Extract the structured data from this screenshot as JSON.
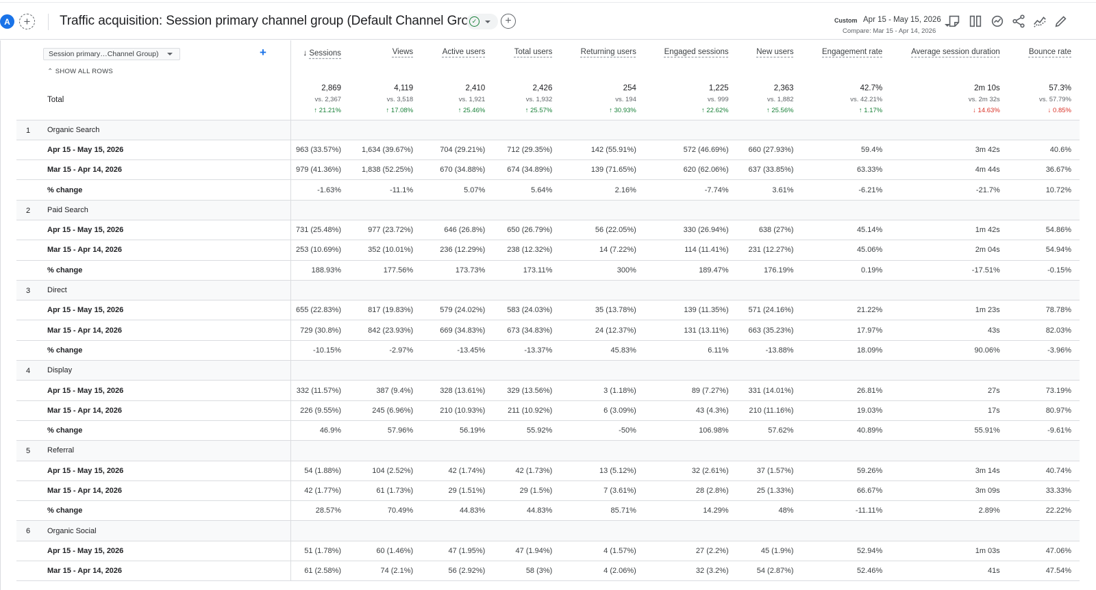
{
  "header": {
    "avatar_letter": "A",
    "title": "Traffic acquisition: Session primary channel group (Default Channel Group)",
    "date": {
      "label": "Custom",
      "range": "Apr 15 - May 15, 2026",
      "compare": "Compare: Mar 15 - Apr 14, 2026"
    },
    "icons": [
      "add-comparison-icon",
      "check-circle-icon",
      "add-icon",
      "notes-icon",
      "compare-columns-icon",
      "insights-icon",
      "share-icon",
      "trend-icon",
      "edit-icon"
    ]
  },
  "table": {
    "dimension_select": "Session primary…Channel Group)",
    "show_all_rows": "SHOW ALL ROWS",
    "total_label": "Total",
    "sorted_column": "Sessions",
    "columns": [
      {
        "name": "Sessions",
        "total": "2,869",
        "vs": "vs. 2,367",
        "change": "↑ 21.21%",
        "dir": "up"
      },
      {
        "name": "Views",
        "total": "4,119",
        "vs": "vs. 3,518",
        "change": "↑ 17.08%",
        "dir": "up"
      },
      {
        "name": "Active users",
        "total": "2,410",
        "vs": "vs. 1,921",
        "change": "↑ 25.46%",
        "dir": "up"
      },
      {
        "name": "Total users",
        "total": "2,426",
        "vs": "vs. 1,932",
        "change": "↑ 25.57%",
        "dir": "up"
      },
      {
        "name": "Returning users",
        "total": "254",
        "vs": "vs. 194",
        "change": "↑ 30.93%",
        "dir": "up"
      },
      {
        "name": "Engaged sessions",
        "total": "1,225",
        "vs": "vs. 999",
        "change": "↑ 22.62%",
        "dir": "up"
      },
      {
        "name": "New users",
        "total": "2,363",
        "vs": "vs. 1,882",
        "change": "↑ 25.56%",
        "dir": "up"
      },
      {
        "name": "Engagement rate",
        "total": "42.7%",
        "vs": "vs. 42.21%",
        "change": "↑ 1.17%",
        "dir": "up"
      },
      {
        "name": "Average session duration",
        "total": "2m 10s",
        "vs": "vs. 2m 32s",
        "change": "↓ 14.63%",
        "dir": "down"
      },
      {
        "name": "Bounce rate",
        "total": "57.3%",
        "vs": "vs. 57.79%",
        "change": "↓ 0.85%",
        "dir": "down"
      }
    ],
    "groups": [
      {
        "rank": "1",
        "name": "Organic Search",
        "rows": [
          {
            "label": "Apr 15 - May 15, 2026",
            "values": [
              "963 (33.57%)",
              "1,634 (39.67%)",
              "704 (29.21%)",
              "712 (29.35%)",
              "142 (55.91%)",
              "572 (46.69%)",
              "660 (27.93%)",
              "59.4%",
              "3m 42s",
              "40.6%"
            ]
          },
          {
            "label": "Mar 15 - Apr 14, 2026",
            "values": [
              "979 (41.36%)",
              "1,838 (52.25%)",
              "670 (34.88%)",
              "674 (34.89%)",
              "139 (71.65%)",
              "620 (62.06%)",
              "637 (33.85%)",
              "63.33%",
              "4m 44s",
              "36.67%"
            ]
          },
          {
            "label": "% change",
            "values": [
              "-1.63%",
              "-11.1%",
              "5.07%",
              "5.64%",
              "2.16%",
              "-7.74%",
              "3.61%",
              "-6.21%",
              "-21.7%",
              "10.72%"
            ]
          }
        ]
      },
      {
        "rank": "2",
        "name": "Paid Search",
        "rows": [
          {
            "label": "Apr 15 - May 15, 2026",
            "values": [
              "731 (25.48%)",
              "977 (23.72%)",
              "646 (26.8%)",
              "650 (26.79%)",
              "56 (22.05%)",
              "330 (26.94%)",
              "638 (27%)",
              "45.14%",
              "1m 42s",
              "54.86%"
            ]
          },
          {
            "label": "Mar 15 - Apr 14, 2026",
            "values": [
              "253 (10.69%)",
              "352 (10.01%)",
              "236 (12.29%)",
              "238 (12.32%)",
              "14 (7.22%)",
              "114 (11.41%)",
              "231 (12.27%)",
              "45.06%",
              "2m 04s",
              "54.94%"
            ]
          },
          {
            "label": "% change",
            "values": [
              "188.93%",
              "177.56%",
              "173.73%",
              "173.11%",
              "300%",
              "189.47%",
              "176.19%",
              "0.19%",
              "-17.51%",
              "-0.15%"
            ]
          }
        ]
      },
      {
        "rank": "3",
        "name": "Direct",
        "rows": [
          {
            "label": "Apr 15 - May 15, 2026",
            "values": [
              "655 (22.83%)",
              "817 (19.83%)",
              "579 (24.02%)",
              "583 (24.03%)",
              "35 (13.78%)",
              "139 (11.35%)",
              "571 (24.16%)",
              "21.22%",
              "1m 23s",
              "78.78%"
            ]
          },
          {
            "label": "Mar 15 - Apr 14, 2026",
            "values": [
              "729 (30.8%)",
              "842 (23.93%)",
              "669 (34.83%)",
              "673 (34.83%)",
              "24 (12.37%)",
              "131 (13.11%)",
              "663 (35.23%)",
              "17.97%",
              "43s",
              "82.03%"
            ]
          },
          {
            "label": "% change",
            "values": [
              "-10.15%",
              "-2.97%",
              "-13.45%",
              "-13.37%",
              "45.83%",
              "6.11%",
              "-13.88%",
              "18.09%",
              "90.06%",
              "-3.96%"
            ]
          }
        ]
      },
      {
        "rank": "4",
        "name": "Display",
        "rows": [
          {
            "label": "Apr 15 - May 15, 2026",
            "values": [
              "332 (11.57%)",
              "387 (9.4%)",
              "328 (13.61%)",
              "329 (13.56%)",
              "3 (1.18%)",
              "89 (7.27%)",
              "331 (14.01%)",
              "26.81%",
              "27s",
              "73.19%"
            ]
          },
          {
            "label": "Mar 15 - Apr 14, 2026",
            "values": [
              "226 (9.55%)",
              "245 (6.96%)",
              "210 (10.93%)",
              "211 (10.92%)",
              "6 (3.09%)",
              "43 (4.3%)",
              "210 (11.16%)",
              "19.03%",
              "17s",
              "80.97%"
            ]
          },
          {
            "label": "% change",
            "values": [
              "46.9%",
              "57.96%",
              "56.19%",
              "55.92%",
              "-50%",
              "106.98%",
              "57.62%",
              "40.89%",
              "55.91%",
              "-9.61%"
            ]
          }
        ]
      },
      {
        "rank": "5",
        "name": "Referral",
        "rows": [
          {
            "label": "Apr 15 - May 15, 2026",
            "values": [
              "54 (1.88%)",
              "104 (2.52%)",
              "42 (1.74%)",
              "42 (1.73%)",
              "13 (5.12%)",
              "32 (2.61%)",
              "37 (1.57%)",
              "59.26%",
              "3m 14s",
              "40.74%"
            ]
          },
          {
            "label": "Mar 15 - Apr 14, 2026",
            "values": [
              "42 (1.77%)",
              "61 (1.73%)",
              "29 (1.51%)",
              "29 (1.5%)",
              "7 (3.61%)",
              "28 (2.8%)",
              "25 (1.33%)",
              "66.67%",
              "3m 09s",
              "33.33%"
            ]
          },
          {
            "label": "% change",
            "values": [
              "28.57%",
              "70.49%",
              "44.83%",
              "44.83%",
              "85.71%",
              "14.29%",
              "48%",
              "-11.11%",
              "2.89%",
              "22.22%"
            ]
          }
        ]
      },
      {
        "rank": "6",
        "name": "Organic Social",
        "rows": [
          {
            "label": "Apr 15 - May 15, 2026",
            "values": [
              "51 (1.78%)",
              "60 (1.46%)",
              "47 (1.95%)",
              "47 (1.94%)",
              "4 (1.57%)",
              "27 (2.2%)",
              "45 (1.9%)",
              "52.94%",
              "1m 03s",
              "47.06%"
            ]
          },
          {
            "label": "Mar 15 - Apr 14, 2026",
            "values": [
              "61 (2.58%)",
              "74 (2.1%)",
              "56 (2.92%)",
              "58 (3%)",
              "4 (2.06%)",
              "32 (3.2%)",
              "54 (2.87%)",
              "52.46%",
              "41s",
              "47.54%"
            ]
          }
        ]
      }
    ]
  }
}
